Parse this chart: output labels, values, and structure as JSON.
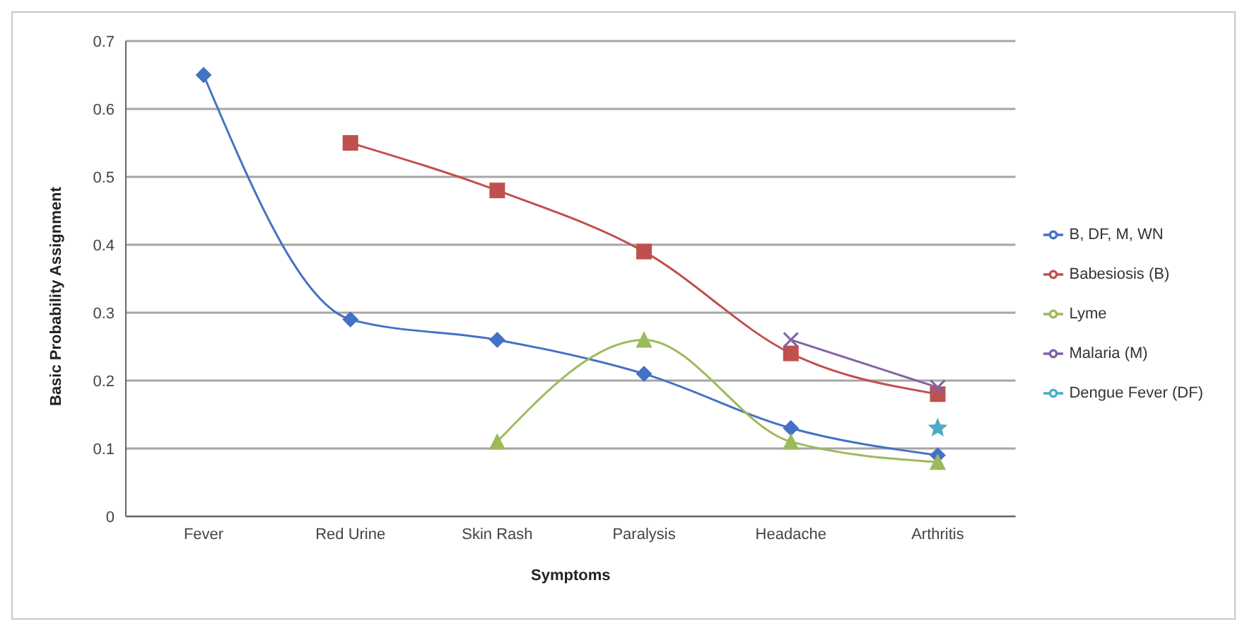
{
  "chart_data": {
    "type": "line",
    "xlabel": "Symptoms",
    "ylabel": "Basic Probability Assignment",
    "categories": [
      "Fever",
      "Red Urine",
      "Skin Rash",
      "Paralysis",
      "Headache",
      "Arthritis"
    ],
    "series": [
      {
        "name": "B, DF, M, WN",
        "color": "#4472c4",
        "marker": "diamond",
        "values": [
          0.65,
          0.29,
          0.26,
          0.21,
          0.13,
          0.09
        ]
      },
      {
        "name": "Babesiosis (B)",
        "color": "#c0504d",
        "marker": "square",
        "values": [
          null,
          0.55,
          0.48,
          0.39,
          0.24,
          0.18
        ]
      },
      {
        "name": "Lyme",
        "color": "#9bbb59",
        "marker": "triangle",
        "values": [
          null,
          null,
          0.11,
          0.26,
          0.11,
          0.08
        ]
      },
      {
        "name": "Malaria (M)",
        "color": "#8064a2",
        "marker": "cross",
        "values": [
          null,
          null,
          null,
          null,
          0.26,
          0.19
        ]
      },
      {
        "name": "Dengue Fever (DF)",
        "color": "#4bacc6",
        "marker": "star",
        "values": [
          null,
          null,
          null,
          null,
          null,
          0.13
        ]
      }
    ],
    "ylim": [
      0,
      0.7
    ],
    "yticks": [
      0,
      0.1,
      0.2,
      0.3,
      0.4,
      0.5,
      0.6,
      0.7
    ],
    "grid": "y",
    "legend": "right"
  }
}
